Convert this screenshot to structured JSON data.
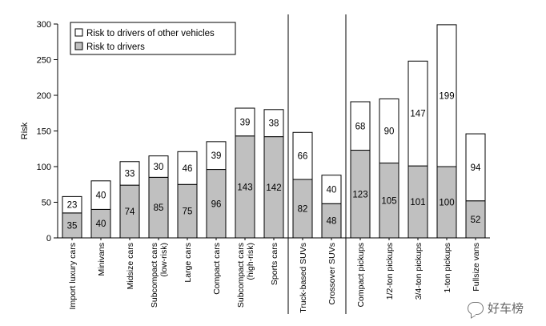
{
  "chart_data": {
    "type": "bar",
    "stacked": true,
    "ylabel": "Risk",
    "xlabel": "",
    "ylim": [
      0,
      300
    ],
    "yticks": [
      0,
      50,
      100,
      150,
      200,
      250,
      300
    ],
    "grid": false,
    "legend_position": "top-left",
    "categories": [
      [
        "Import luxury cars"
      ],
      [
        "Minivans"
      ],
      [
        "Midsize cars"
      ],
      [
        "Subcompact cars",
        "(low-risk)"
      ],
      [
        "Large cars"
      ],
      [
        "Compact cars"
      ],
      [
        "Subcompact cars",
        "(high-risk)"
      ],
      [
        "Sports cars"
      ],
      [
        "Truck-based SUVs"
      ],
      [
        "Crossover SUVs"
      ],
      [
        "Compact pickups"
      ],
      [
        "1/2-ton pickups"
      ],
      [
        "3/4-ton pickups"
      ],
      [
        "1-ton pickups"
      ],
      [
        "Fullsize vans"
      ]
    ],
    "group_separators_after": [
      7,
      9
    ],
    "series": [
      {
        "name": "Risk to drivers",
        "color": "#c0c0c0",
        "values": [
          35,
          40,
          74,
          85,
          75,
          96,
          143,
          142,
          82,
          48,
          123,
          105,
          101,
          100,
          52
        ]
      },
      {
        "name": "Risk to drivers of other vehicles",
        "color": "#ffffff",
        "values": [
          23,
          40,
          33,
          30,
          46,
          39,
          39,
          38,
          66,
          40,
          68,
          90,
          147,
          199,
          94
        ]
      }
    ]
  },
  "watermark": {
    "text": "好车榜",
    "icon": "wechat-icon"
  }
}
